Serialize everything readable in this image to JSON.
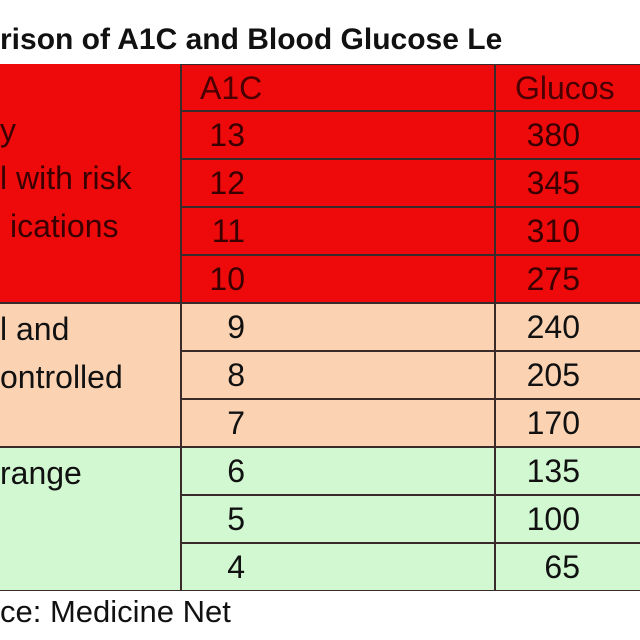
{
  "title": "rison of A1C and Blood Glucose Le",
  "table": {
    "header": [
      "A1C",
      "Glucos"
    ],
    "groups": [
      {
        "label": [
          "y",
          "l with risk",
          "ications"
        ],
        "color": "#ee0a0a",
        "rows": [
          [
            "13",
            "380"
          ],
          [
            "12",
            "345"
          ],
          [
            "11",
            "310"
          ],
          [
            "10",
            "275"
          ]
        ]
      },
      {
        "label": [
          "l and",
          "ontrolled"
        ],
        "color": "#fcd3b2",
        "rows": [
          [
            "9",
            "240"
          ],
          [
            "8",
            "205"
          ],
          [
            "7",
            "170"
          ]
        ]
      },
      {
        "label": [
          "range"
        ],
        "color": "#d2f8d2",
        "rows": [
          [
            "6",
            "135"
          ],
          [
            "5",
            "100"
          ],
          [
            "4",
            "65"
          ]
        ]
      }
    ]
  },
  "footer": "ce: Medicine Net"
}
